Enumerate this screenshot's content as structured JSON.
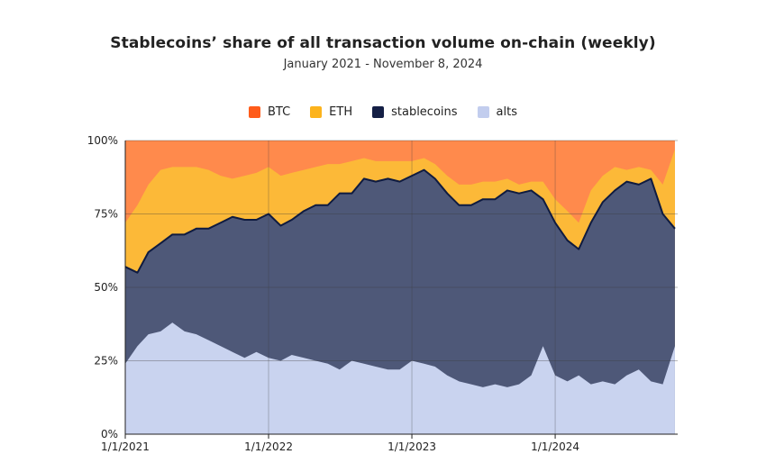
{
  "chart_data": {
    "type": "area",
    "stacked": true,
    "normalized": true,
    "title": "Stablecoins’ share of all transaction volume on-chain (weekly)",
    "subtitle": "January 2021 - November 8, 2024",
    "xlabel": "",
    "ylabel": "",
    "ylim": [
      0,
      100
    ],
    "y_ticks": [
      "0%",
      "25%",
      "50%",
      "75%",
      "100%"
    ],
    "x_ticks": [
      "1/1/2021",
      "1/1/2022",
      "1/1/2023",
      "1/1/2024"
    ],
    "x_range": [
      "2021-01-01",
      "2024-11-08"
    ],
    "legend_position": "top-center",
    "grid": true,
    "x": [
      "2021-01",
      "2021-02",
      "2021-03",
      "2021-04",
      "2021-05",
      "2021-06",
      "2021-07",
      "2021-08",
      "2021-09",
      "2021-10",
      "2021-11",
      "2021-12",
      "2022-01",
      "2022-02",
      "2022-03",
      "2022-04",
      "2022-05",
      "2022-06",
      "2022-07",
      "2022-08",
      "2022-09",
      "2022-10",
      "2022-11",
      "2022-12",
      "2023-01",
      "2023-02",
      "2023-03",
      "2023-04",
      "2023-05",
      "2023-06",
      "2023-07",
      "2023-08",
      "2023-09",
      "2023-10",
      "2023-11",
      "2023-12",
      "2024-01",
      "2024-02",
      "2024-03",
      "2024-04",
      "2024-05",
      "2024-06",
      "2024-07",
      "2024-08",
      "2024-09",
      "2024-10",
      "2024-11"
    ],
    "series": [
      {
        "name": "alts",
        "color": "#c9d3ef",
        "cumulative": [
          24,
          30,
          34,
          35,
          38,
          35,
          34,
          32,
          30,
          28,
          26,
          28,
          26,
          25,
          27,
          26,
          25,
          24,
          22,
          25,
          24,
          23,
          22,
          22,
          25,
          24,
          23,
          20,
          18,
          17,
          16,
          17,
          16,
          17,
          20,
          30,
          20,
          18,
          20,
          17,
          18,
          17,
          20,
          22,
          18,
          17,
          30
        ]
      },
      {
        "name": "stablecoins",
        "color": "#4e5878",
        "line_color": "#0f1b40",
        "cumulative": [
          57,
          55,
          62,
          65,
          68,
          68,
          70,
          70,
          72,
          74,
          73,
          73,
          75,
          71,
          73,
          76,
          78,
          78,
          82,
          82,
          87,
          86,
          87,
          86,
          88,
          90,
          87,
          82,
          78,
          78,
          80,
          80,
          83,
          82,
          83,
          80,
          72,
          66,
          63,
          72,
          79,
          83,
          86,
          85,
          87,
          75,
          70
        ]
      },
      {
        "name": "ETH",
        "color": "#fcb938",
        "cumulative": [
          72,
          78,
          85,
          90,
          91,
          91,
          91,
          90,
          88,
          87,
          88,
          89,
          91,
          88,
          89,
          90,
          91,
          92,
          92,
          93,
          94,
          93,
          93,
          93,
          93,
          94,
          92,
          88,
          85,
          85,
          86,
          86,
          87,
          85,
          86,
          86,
          80,
          76,
          72,
          83,
          88,
          91,
          90,
          91,
          90,
          85,
          97
        ]
      },
      {
        "name": "BTC",
        "color": "#ff8a4c",
        "cumulative": [
          100,
          100,
          100,
          100,
          100,
          100,
          100,
          100,
          100,
          100,
          100,
          100,
          100,
          100,
          100,
          100,
          100,
          100,
          100,
          100,
          100,
          100,
          100,
          100,
          100,
          100,
          100,
          100,
          100,
          100,
          100,
          100,
          100,
          100,
          100,
          100,
          100,
          100,
          100,
          100,
          100,
          100,
          100,
          100,
          100,
          100,
          100
        ]
      }
    ],
    "legend": [
      {
        "name": "BTC",
        "color": "#ff5c1a"
      },
      {
        "name": "ETH",
        "color": "#fcb31c"
      },
      {
        "name": "stablecoins",
        "color": "#141f45"
      },
      {
        "name": "alts",
        "color": "#c2cdee"
      }
    ]
  }
}
